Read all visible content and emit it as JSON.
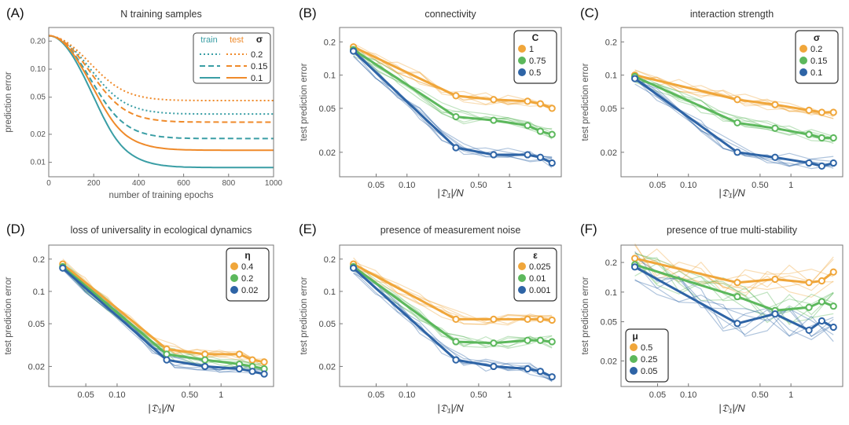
{
  "colors": {
    "orange": "#f0a63a",
    "green": "#5cb85c",
    "blue": "#2e64a6",
    "train": "#3a9ea5",
    "test": "#ef8a2a"
  },
  "chart_data": [
    {
      "id": "A",
      "panel_label": "(A)",
      "type": "line",
      "title": "N training samples",
      "xlabel": "number of training epochs",
      "ylabel": "prediction error",
      "xlim": [
        0,
        1000
      ],
      "ylim": [
        0.007,
        0.28
      ],
      "yscale": "log",
      "xticks": [
        0,
        200,
        400,
        600,
        800,
        1000
      ],
      "yticks": [
        {
          "v": 0.01,
          "label": "0.01"
        },
        {
          "v": 0.02,
          "label": "0.02"
        },
        {
          "v": 0.05,
          "label": "0.05"
        },
        {
          "v": 0.1,
          "label": "0.10"
        },
        {
          "v": 0.2,
          "label": "0.20"
        }
      ],
      "legend": {
        "position": "top-right",
        "col_headers": [
          "train",
          "test",
          "σ"
        ],
        "rows": [
          "0.2",
          "0.15",
          "0.1"
        ]
      },
      "series": [
        {
          "name": "train σ=0.2",
          "color": "train",
          "dash": "dot",
          "start": 0.23,
          "final": 0.033,
          "k": 5.0
        },
        {
          "name": "test σ=0.2",
          "color": "test",
          "dash": "dot",
          "start": 0.23,
          "final": 0.046,
          "k": 4.6
        },
        {
          "name": "train σ=0.15",
          "color": "train",
          "dash": "dash",
          "start": 0.23,
          "final": 0.018,
          "k": 5.5
        },
        {
          "name": "test σ=0.15",
          "color": "test",
          "dash": "dash",
          "start": 0.23,
          "final": 0.027,
          "k": 5.2
        },
        {
          "name": "train σ=0.1",
          "color": "train",
          "dash": "solid",
          "start": 0.23,
          "final": 0.0088,
          "k": 6.5
        },
        {
          "name": "test σ=0.1",
          "color": "test",
          "dash": "solid",
          "start": 0.23,
          "final": 0.0135,
          "k": 6.5
        }
      ]
    },
    {
      "id": "B",
      "panel_label": "(B)",
      "type": "line",
      "title": "connectivity",
      "xlabel": "|𝔇₁|/N",
      "ylabel": "test prediction error",
      "xscale": "log",
      "yscale": "log",
      "xlim": [
        0.022,
        3.2
      ],
      "ylim": [
        0.012,
        0.27
      ],
      "xticks": [
        {
          "v": 0.05,
          "label": "0.05"
        },
        {
          "v": 0.1,
          "label": "0.10"
        },
        {
          "v": 0.5,
          "label": "0.50"
        },
        {
          "v": 1,
          "label": "1"
        }
      ],
      "yticks": [
        {
          "v": 0.02,
          "label": "0.02"
        },
        {
          "v": 0.05,
          "label": "0.05"
        },
        {
          "v": 0.1,
          "label": "0.1"
        },
        {
          "v": 0.2,
          "label": "0.2"
        }
      ],
      "legend": {
        "position": "top-right",
        "header": "C"
      },
      "x": [
        0.03,
        0.3,
        0.7,
        1.5,
        2.0,
        2.6
      ],
      "series": [
        {
          "name": "1",
          "color": "orange",
          "values": [
            0.18,
            0.065,
            0.06,
            0.058,
            0.055,
            0.05
          ]
        },
        {
          "name": "0.75",
          "color": "green",
          "values": [
            0.17,
            0.042,
            0.039,
            0.035,
            0.031,
            0.029
          ]
        },
        {
          "name": "0.5",
          "color": "blue",
          "values": [
            0.165,
            0.022,
            0.019,
            0.019,
            0.018,
            0.016
          ]
        }
      ]
    },
    {
      "id": "C",
      "panel_label": "(C)",
      "type": "line",
      "title": "interaction strength",
      "xlabel": "|𝔇₁|/N",
      "ylabel": "test prediction error",
      "xscale": "log",
      "yscale": "log",
      "xlim": [
        0.022,
        3.2
      ],
      "ylim": [
        0.012,
        0.27
      ],
      "xticks": [
        {
          "v": 0.05,
          "label": "0.05"
        },
        {
          "v": 0.1,
          "label": "0.10"
        },
        {
          "v": 0.5,
          "label": "0.50"
        },
        {
          "v": 1,
          "label": "1"
        }
      ],
      "yticks": [
        {
          "v": 0.02,
          "label": "0.02"
        },
        {
          "v": 0.05,
          "label": "0.05"
        },
        {
          "v": 0.1,
          "label": "0.1"
        },
        {
          "v": 0.2,
          "label": "0.2"
        }
      ],
      "legend": {
        "position": "top-right",
        "header": "σ"
      },
      "x": [
        0.03,
        0.3,
        0.7,
        1.5,
        2.0,
        2.6
      ],
      "series": [
        {
          "name": "0.2",
          "color": "orange",
          "values": [
            0.1,
            0.06,
            0.054,
            0.048,
            0.046,
            0.046
          ]
        },
        {
          "name": "0.15",
          "color": "green",
          "values": [
            0.097,
            0.037,
            0.033,
            0.029,
            0.027,
            0.027
          ]
        },
        {
          "name": "0.1",
          "color": "blue",
          "values": [
            0.093,
            0.02,
            0.018,
            0.016,
            0.015,
            0.016
          ]
        }
      ]
    },
    {
      "id": "D",
      "panel_label": "(D)",
      "type": "line",
      "title": "loss of universality in ecological dynamics",
      "xlabel": "|𝔇₁|/N",
      "ylabel": "test prediction error",
      "xscale": "log",
      "yscale": "log",
      "xlim": [
        0.022,
        3.2
      ],
      "ylim": [
        0.013,
        0.27
      ],
      "xticks": [
        {
          "v": 0.05,
          "label": "0.05"
        },
        {
          "v": 0.1,
          "label": "0.10"
        },
        {
          "v": 0.5,
          "label": "0.50"
        },
        {
          "v": 1,
          "label": "1"
        }
      ],
      "yticks": [
        {
          "v": 0.02,
          "label": "0.02"
        },
        {
          "v": 0.05,
          "label": "0.05"
        },
        {
          "v": 0.1,
          "label": "0.1"
        },
        {
          "v": 0.2,
          "label": "0.2"
        }
      ],
      "legend": {
        "position": "top-right",
        "header": "η"
      },
      "x": [
        0.03,
        0.3,
        0.7,
        1.5,
        2.0,
        2.6
      ],
      "series": [
        {
          "name": "0.4",
          "color": "orange",
          "values": [
            0.18,
            0.029,
            0.026,
            0.026,
            0.023,
            0.022
          ]
        },
        {
          "name": "0.2",
          "color": "green",
          "values": [
            0.17,
            0.026,
            0.023,
            0.021,
            0.02,
            0.019
          ]
        },
        {
          "name": "0.02",
          "color": "blue",
          "values": [
            0.165,
            0.023,
            0.02,
            0.019,
            0.018,
            0.017
          ]
        }
      ]
    },
    {
      "id": "E",
      "panel_label": "(E)",
      "type": "line",
      "title": "presence of measurement noise",
      "xlabel": "|𝔇₁|/N",
      "ylabel": "test prediction error",
      "xscale": "log",
      "yscale": "log",
      "xlim": [
        0.022,
        3.2
      ],
      "ylim": [
        0.013,
        0.27
      ],
      "xticks": [
        {
          "v": 0.05,
          "label": "0.05"
        },
        {
          "v": 0.1,
          "label": "0.10"
        },
        {
          "v": 0.5,
          "label": "0.50"
        },
        {
          "v": 1,
          "label": "1"
        }
      ],
      "yticks": [
        {
          "v": 0.02,
          "label": "0.02"
        },
        {
          "v": 0.05,
          "label": "0.05"
        },
        {
          "v": 0.1,
          "label": "0.1"
        },
        {
          "v": 0.2,
          "label": "0.2"
        }
      ],
      "legend": {
        "position": "top-right",
        "header": "ε"
      },
      "x": [
        0.03,
        0.3,
        0.7,
        1.5,
        2.0,
        2.6
      ],
      "series": [
        {
          "name": "0.025",
          "color": "orange",
          "values": [
            0.18,
            0.055,
            0.055,
            0.055,
            0.055,
            0.054
          ]
        },
        {
          "name": "0.01",
          "color": "green",
          "values": [
            0.17,
            0.034,
            0.033,
            0.035,
            0.035,
            0.034
          ]
        },
        {
          "name": "0.001",
          "color": "blue",
          "values": [
            0.165,
            0.023,
            0.02,
            0.019,
            0.018,
            0.016
          ]
        }
      ]
    },
    {
      "id": "F",
      "panel_label": "(F)",
      "type": "line",
      "title": "presence of true multi-stability",
      "xlabel": "|𝔇₁|/N",
      "ylabel": "test prediction error",
      "xscale": "log",
      "yscale": "log",
      "xlim": [
        0.022,
        3.2
      ],
      "ylim": [
        0.011,
        0.3
      ],
      "xticks": [
        {
          "v": 0.05,
          "label": "0.05"
        },
        {
          "v": 0.1,
          "label": "0.10"
        },
        {
          "v": 0.5,
          "label": "0.50"
        },
        {
          "v": 1,
          "label": "1"
        }
      ],
      "yticks": [
        {
          "v": 0.02,
          "label": "0.02"
        },
        {
          "v": 0.05,
          "label": "0.05"
        },
        {
          "v": 0.1,
          "label": "0.1"
        },
        {
          "v": 0.2,
          "label": "0.2"
        }
      ],
      "legend": {
        "position": "bottom-left",
        "header": "μ"
      },
      "x": [
        0.03,
        0.3,
        0.7,
        1.5,
        2.0,
        2.6
      ],
      "series": [
        {
          "name": "0.5",
          "color": "orange",
          "values": [
            0.22,
            0.125,
            0.135,
            0.125,
            0.13,
            0.16
          ]
        },
        {
          "name": "0.25",
          "color": "green",
          "values": [
            0.19,
            0.09,
            0.065,
            0.07,
            0.08,
            0.072
          ]
        },
        {
          "name": "0.05",
          "color": "blue",
          "values": [
            0.18,
            0.048,
            0.06,
            0.041,
            0.051,
            0.044
          ]
        }
      ]
    }
  ]
}
